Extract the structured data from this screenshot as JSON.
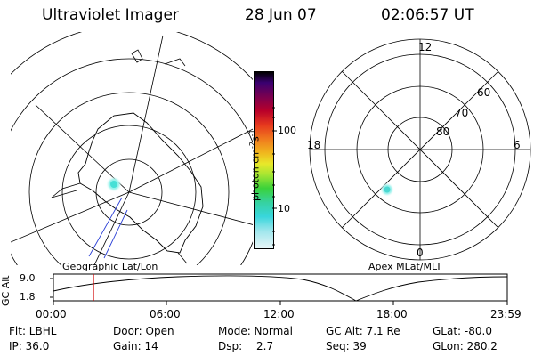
{
  "header": {
    "title": "Ultraviolet Imager",
    "date": "28 Jun 07",
    "time": "02:06:57 UT"
  },
  "colorbar": {
    "unit_label": "photon cm",
    "unit_exp": "-2",
    "unit_s": "s",
    "unit_exp2": "-1",
    "ticks": [
      "100",
      "10"
    ]
  },
  "geo_panel": {
    "label": "Geographic Lat/Lon"
  },
  "apex_panel": {
    "label": "Apex MLat/MLT",
    "mlt_labels": [
      "12",
      "18",
      "6",
      "0"
    ],
    "lat_labels": [
      "60",
      "70",
      "80"
    ]
  },
  "timeline": {
    "ylabel": "GC Alt",
    "yticks": [
      "9.0",
      "1.8"
    ],
    "xticks": [
      "00:00",
      "06:00",
      "12:00",
      "18:00",
      "23:59"
    ],
    "current_marker_time": "02:06:57"
  },
  "info": {
    "flt": "Flt: LBHL",
    "ip": "IP: 36.0",
    "door": "Door: Open",
    "gain": "Gain: 14",
    "mode": "Mode: Normal",
    "dsp_label": "Dsp:",
    "dsp_value": "2.7",
    "gcalt": "GC Alt: 7.1 Re",
    "seq": "Seq: 39",
    "glat": "GLat: -80.0",
    "glon": "GLon: 280.2"
  }
}
